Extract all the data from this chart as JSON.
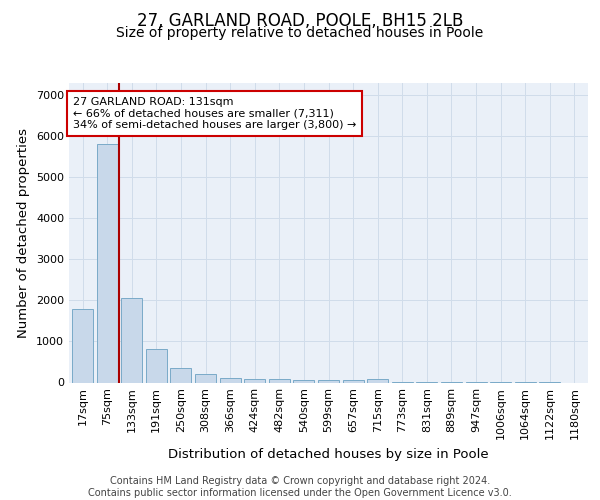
{
  "title_line1": "27, GARLAND ROAD, POOLE, BH15 2LB",
  "title_line2": "Size of property relative to detached houses in Poole",
  "xlabel": "Distribution of detached houses by size in Poole",
  "ylabel": "Number of detached properties",
  "categories": [
    "17sqm",
    "75sqm",
    "133sqm",
    "191sqm",
    "250sqm",
    "308sqm",
    "366sqm",
    "424sqm",
    "482sqm",
    "540sqm",
    "599sqm",
    "657sqm",
    "715sqm",
    "773sqm",
    "831sqm",
    "889sqm",
    "947sqm",
    "1006sqm",
    "1064sqm",
    "1122sqm",
    "1180sqm"
  ],
  "values": [
    1800,
    5800,
    2050,
    820,
    350,
    200,
    120,
    90,
    80,
    60,
    55,
    50,
    80,
    5,
    5,
    5,
    5,
    5,
    5,
    5,
    0
  ],
  "bar_color": "#c8d8ea",
  "bar_edge_color": "#7aaac8",
  "grid_color": "#d0dcea",
  "background_color": "#eaf0f8",
  "vline_x_index": 1,
  "vline_color": "#aa0000",
  "annotation_text": "27 GARLAND ROAD: 131sqm\n← 66% of detached houses are smaller (7,311)\n34% of semi-detached houses are larger (3,800) →",
  "annotation_box_color": "#ffffff",
  "annotation_box_edge_color": "#cc0000",
  "ylim": [
    0,
    7300
  ],
  "yticks": [
    0,
    1000,
    2000,
    3000,
    4000,
    5000,
    6000,
    7000
  ],
  "footer_text": "Contains HM Land Registry data © Crown copyright and database right 2024.\nContains public sector information licensed under the Open Government Licence v3.0.",
  "title_fontsize": 12,
  "subtitle_fontsize": 10,
  "label_fontsize": 9.5,
  "tick_fontsize": 8,
  "footer_fontsize": 7
}
